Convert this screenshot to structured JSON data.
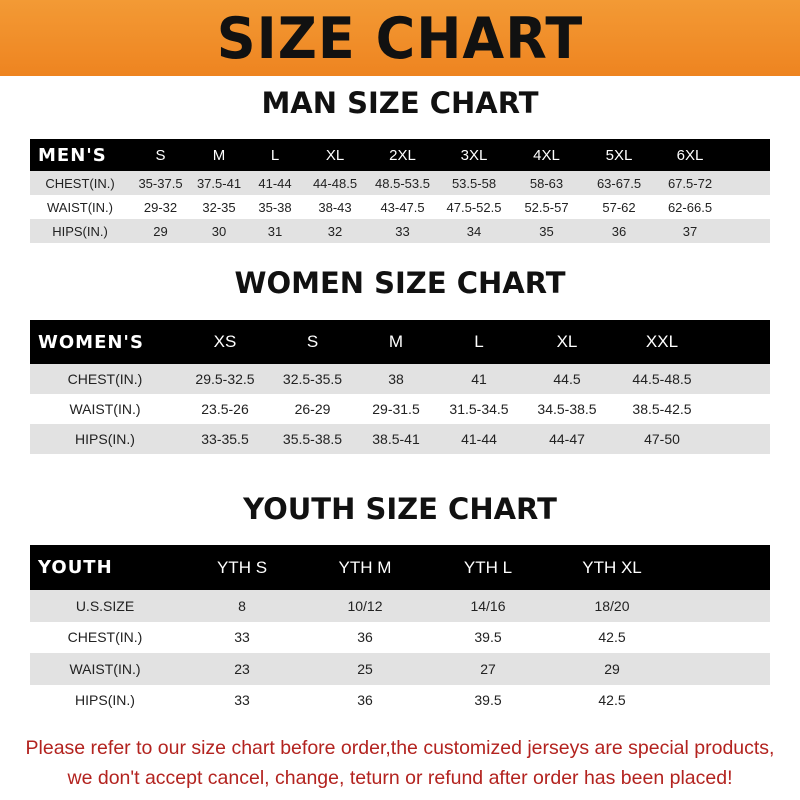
{
  "title": "SIZE CHART",
  "men": {
    "title": "MAN SIZE CHART",
    "header": "MEN'S",
    "sizes": [
      "S",
      "M",
      "L",
      "XL",
      "2XL",
      "3XL",
      "4XL",
      "5XL",
      "6XL"
    ],
    "rows": [
      {
        "label": "CHEST(IN.)",
        "values": [
          "35-37.5",
          "37.5-41",
          "41-44",
          "44-48.5",
          "48.5-53.5",
          "53.5-58",
          "58-63",
          "63-67.5",
          "67.5-72"
        ]
      },
      {
        "label": "WAIST(IN.)",
        "values": [
          "29-32",
          "32-35",
          "35-38",
          "38-43",
          "43-47.5",
          "47.5-52.5",
          "52.5-57",
          "57-62",
          "62-66.5"
        ]
      },
      {
        "label": "HIPS(IN.)",
        "values": [
          "29",
          "30",
          "31",
          "32",
          "33",
          "34",
          "35",
          "36",
          "37"
        ]
      }
    ]
  },
  "women": {
    "title": "WOMEN SIZE CHART",
    "header": "WOMEN'S",
    "sizes": [
      "XS",
      "S",
      "M",
      "L",
      "XL",
      "XXL"
    ],
    "rows": [
      {
        "label": "CHEST(IN.)",
        "values": [
          "29.5-32.5",
          "32.5-35.5",
          "38",
          "41",
          "44.5",
          "44.5-48.5"
        ]
      },
      {
        "label": "WAIST(IN.)",
        "values": [
          "23.5-26",
          "26-29",
          "29-31.5",
          "31.5-34.5",
          "34.5-38.5",
          "38.5-42.5"
        ]
      },
      {
        "label": "HIPS(IN.)",
        "values": [
          "33-35.5",
          "35.5-38.5",
          "38.5-41",
          "41-44",
          "44-47",
          "47-50"
        ]
      }
    ]
  },
  "youth": {
    "title": "YOUTH SIZE CHART",
    "header": "YOUTH",
    "sizes": [
      "YTH S",
      "YTH M",
      "YTH L",
      "YTH XL"
    ],
    "rows": [
      {
        "label": "U.S.SIZE",
        "values": [
          "8",
          "10/12",
          "14/16",
          "18/20"
        ]
      },
      {
        "label": "CHEST(IN.)",
        "values": [
          "33",
          "36",
          "39.5",
          "42.5"
        ]
      },
      {
        "label": "WAIST(IN.)",
        "values": [
          "23",
          "25",
          "27",
          "29"
        ]
      },
      {
        "label": "HIPS(IN.)",
        "values": [
          "33",
          "36",
          "39.5",
          "42.5"
        ]
      }
    ]
  },
  "note": [
    "Please refer to our size chart before order,the customized jerseys are special products,",
    "we don't accept cancel, change, teturn or refund after order has been placed!"
  ],
  "colors": {
    "banner": "#ee8420",
    "note": "#b3231f",
    "header_row": "#000000",
    "stripe": "#e2e2e2"
  }
}
